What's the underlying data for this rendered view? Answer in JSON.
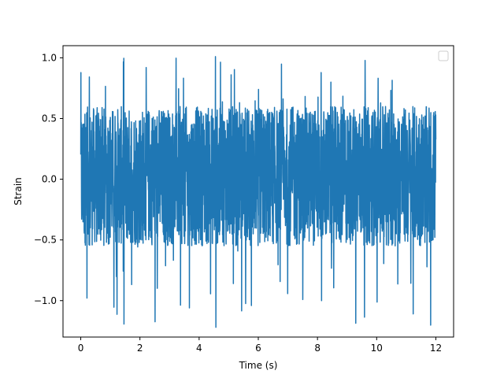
{
  "chart_data": {
    "type": "line",
    "title": "",
    "xlabel": "Time (s)",
    "ylabel": "Strain",
    "xlim": [
      -0.6,
      12.6
    ],
    "ylim": [
      -1.3,
      1.1
    ],
    "xticks": [
      0,
      2,
      4,
      6,
      8,
      10,
      12
    ],
    "xtick_labels": [
      "0",
      "2",
      "4",
      "6",
      "8",
      "10",
      "12"
    ],
    "yticks": [
      -1.0,
      -0.5,
      0.0,
      0.5,
      1.0
    ],
    "ytick_labels": [
      "−1.0",
      "−0.5",
      "0.0",
      "0.5",
      "1.0"
    ],
    "grid": false,
    "legend": {
      "position": "upper-right",
      "entries": []
    },
    "series": [
      {
        "color": "#1f77b4",
        "x_range": [
          0,
          12
        ],
        "description_of_values": "dense noise signal",
        "typical_range": [
          -0.55,
          0.6
        ],
        "max": 1.01,
        "min": -1.22
      }
    ]
  }
}
